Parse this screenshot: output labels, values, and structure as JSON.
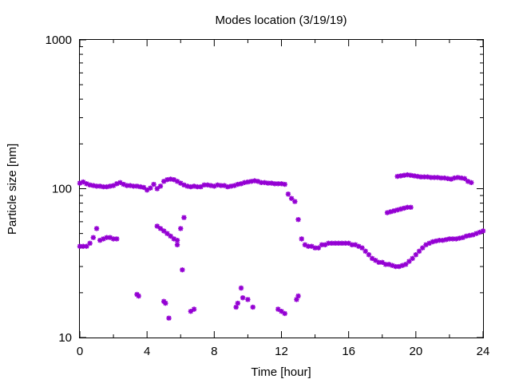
{
  "chart_data": {
    "type": "scatter",
    "title": "Modes location (3/19/19)",
    "xlabel": "Time [hour]",
    "ylabel": "Particle size [nm]",
    "xlim": [
      0,
      24
    ],
    "ylim": [
      10,
      1000
    ],
    "y_scale": "log",
    "x_ticks": [
      0,
      4,
      8,
      12,
      16,
      20,
      24
    ],
    "x_tick_labels": [
      "0",
      "4",
      "8",
      "12",
      "16",
      "20",
      "24"
    ],
    "y_ticks": [
      10,
      100,
      1000
    ],
    "y_tick_labels": [
      "10",
      "100",
      "1000"
    ],
    "grid": false,
    "legend": "none",
    "marker_color": "#9400D3",
    "series": [
      {
        "x": [
          0.0,
          0.2,
          0.4,
          0.6,
          0.8,
          1.0,
          1.2,
          1.4,
          1.6,
          1.8,
          2.0,
          2.2,
          2.4,
          2.6,
          2.8,
          3.0,
          3.2,
          3.4,
          3.6,
          3.8,
          4.0,
          4.2,
          4.4,
          4.6,
          4.8,
          5.0,
          5.2,
          5.4,
          5.6,
          5.8,
          6.0,
          6.2,
          6.4,
          6.6,
          6.8,
          7.0,
          7.2,
          7.4,
          7.6,
          7.8,
          8.0,
          8.2,
          8.4,
          8.6,
          8.8,
          9.0,
          9.2,
          9.4,
          9.6,
          9.8,
          10.0,
          10.2,
          10.4,
          10.6,
          10.8,
          11.0,
          11.2,
          11.4,
          11.6,
          11.8,
          12.0,
          12.2,
          12.4,
          12.6,
          12.8,
          13.0,
          13.2,
          13.4,
          13.6,
          13.8,
          14.0,
          14.2,
          14.4,
          14.6,
          14.8,
          15.0,
          15.2,
          15.4,
          15.6,
          15.8,
          16.0,
          16.2,
          16.4,
          16.6,
          16.8,
          17.0,
          17.2,
          17.4,
          17.6,
          17.8,
          18.0,
          18.2,
          18.4,
          18.6,
          18.8,
          19.0,
          19.2,
          19.4,
          19.6,
          19.8,
          20.0,
          20.2,
          20.4,
          20.6,
          20.8,
          21.0,
          21.2,
          21.4,
          21.6,
          21.8,
          22.0,
          22.2,
          22.4,
          22.6,
          22.8,
          23.0,
          23.2,
          23.4,
          23.6,
          23.8,
          24.0
        ],
        "y": [
          109,
          111,
          108,
          106,
          105,
          104,
          104,
          103,
          103,
          104,
          105,
          108,
          110,
          107,
          105,
          105,
          104,
          104,
          103,
          102,
          98,
          101,
          107,
          100,
          104,
          112,
          115,
          116,
          115,
          112,
          109,
          106,
          104,
          103,
          104,
          103,
          103,
          106,
          106,
          105,
          104,
          106,
          105,
          105,
          103,
          104,
          105,
          107,
          108,
          110,
          111,
          112,
          113,
          112,
          110,
          110,
          109,
          109,
          108,
          108,
          108,
          107,
          92,
          86,
          82,
          62,
          46,
          42,
          41,
          41,
          40,
          40,
          42,
          42,
          43,
          43,
          43,
          43,
          43,
          43,
          43,
          42,
          42,
          41,
          40,
          38,
          36,
          34,
          33,
          32,
          32,
          31,
          31,
          30.5,
          30,
          30,
          30.5,
          31,
          32.5,
          34,
          36,
          38,
          40,
          42,
          43,
          44,
          44.5,
          45,
          45,
          45.5,
          46,
          46,
          46,
          46.5,
          47,
          48,
          48.5,
          49,
          50,
          51,
          52
        ]
      },
      {
        "x": [
          0.0,
          0.2,
          0.4,
          0.6,
          0.8,
          1.0,
          1.2,
          1.4,
          1.6,
          1.8,
          2.0,
          2.2,
          4.6,
          4.8,
          5.0,
          5.2,
          5.4,
          5.6,
          5.8,
          6.0,
          6.2
        ],
        "y": [
          41,
          41,
          41,
          43,
          47,
          54,
          45,
          46,
          47,
          47,
          46,
          46,
          56,
          54,
          52,
          50,
          48,
          46,
          45,
          54,
          64
        ]
      },
      {
        "x": [
          3.4,
          3.5,
          5.0,
          5.1,
          5.3,
          5.8,
          6.1,
          6.6,
          6.8,
          9.3,
          9.4,
          9.6,
          9.7,
          10.0,
          10.3,
          11.8,
          12.0,
          12.2,
          12.9,
          13.0
        ],
        "y": [
          19.5,
          19,
          17.5,
          17,
          13.5,
          42,
          28.5,
          15,
          15.5,
          16,
          17,
          21.5,
          18.5,
          18,
          16,
          15.5,
          15,
          14.5,
          18,
          19
        ]
      },
      {
        "x": [
          18.3,
          18.5,
          18.7,
          18.9,
          19.1,
          19.3,
          19.5,
          19.7
        ],
        "y": [
          69,
          70,
          71,
          72,
          73,
          74,
          75,
          75
        ]
      },
      {
        "x": [
          18.9,
          19.1,
          19.3,
          19.5,
          19.7,
          19.9,
          20.1,
          20.3,
          20.5,
          20.7,
          20.9,
          21.1,
          21.3,
          21.5,
          21.7,
          21.9,
          22.1,
          22.3,
          22.5,
          22.7,
          22.9,
          23.1,
          23.3
        ],
        "y": [
          121,
          122,
          123,
          124,
          123,
          122,
          121,
          120,
          120,
          120,
          119,
          119,
          119,
          118,
          118,
          117,
          116,
          118,
          119,
          118,
          117,
          112,
          110
        ]
      }
    ]
  }
}
